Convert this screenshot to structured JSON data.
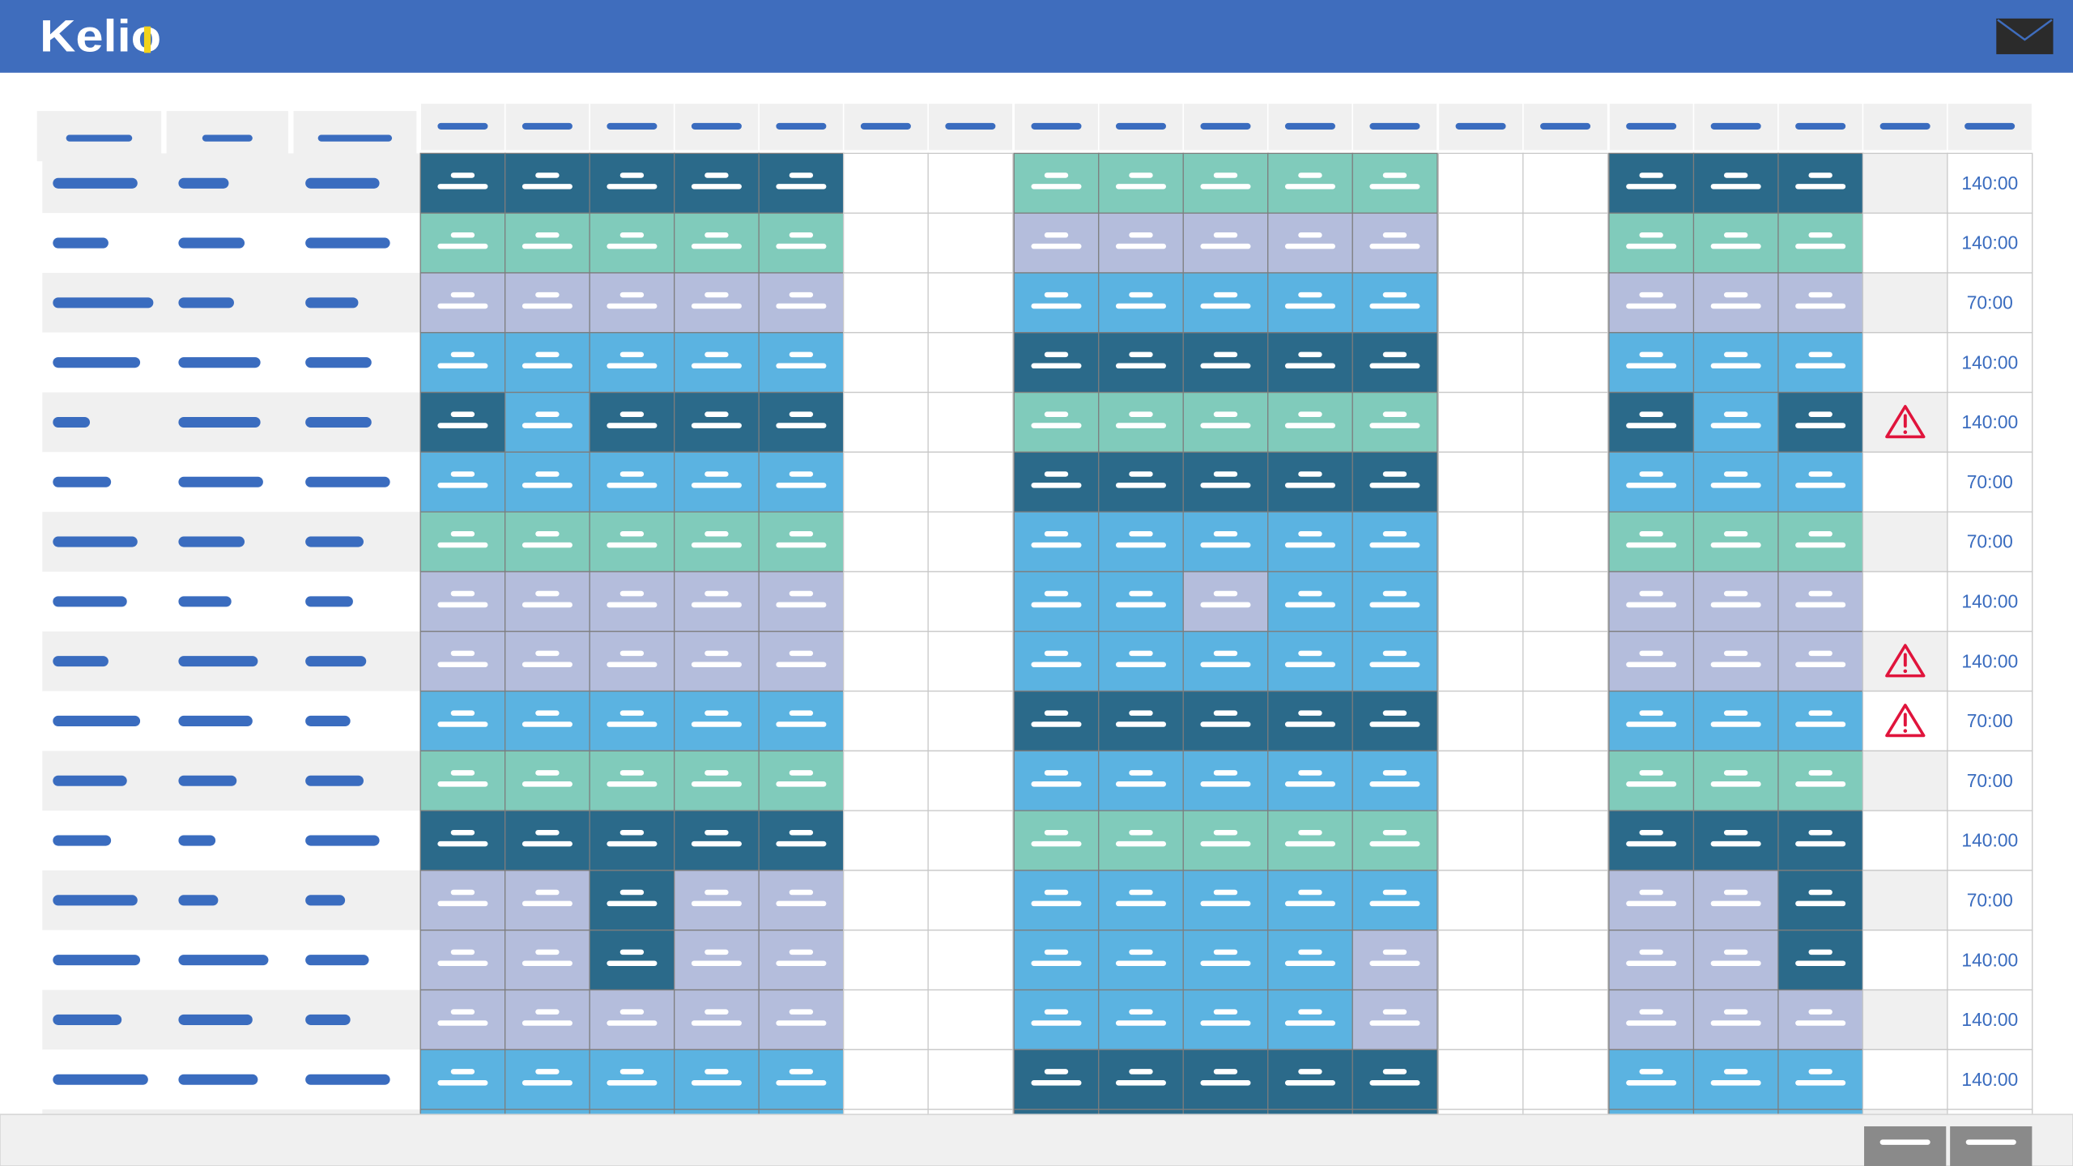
{
  "header": {
    "logo": "Kelio"
  },
  "table": {
    "totals": [
      "140:00",
      "140:00",
      "70:00",
      "140:00",
      "140:00",
      "70:00",
      "70:00",
      "140:00",
      "140:00",
      "70:00",
      "70:00",
      "140:00",
      "70:00",
      "140:00",
      "140:00",
      "140:00"
    ]
  }
}
